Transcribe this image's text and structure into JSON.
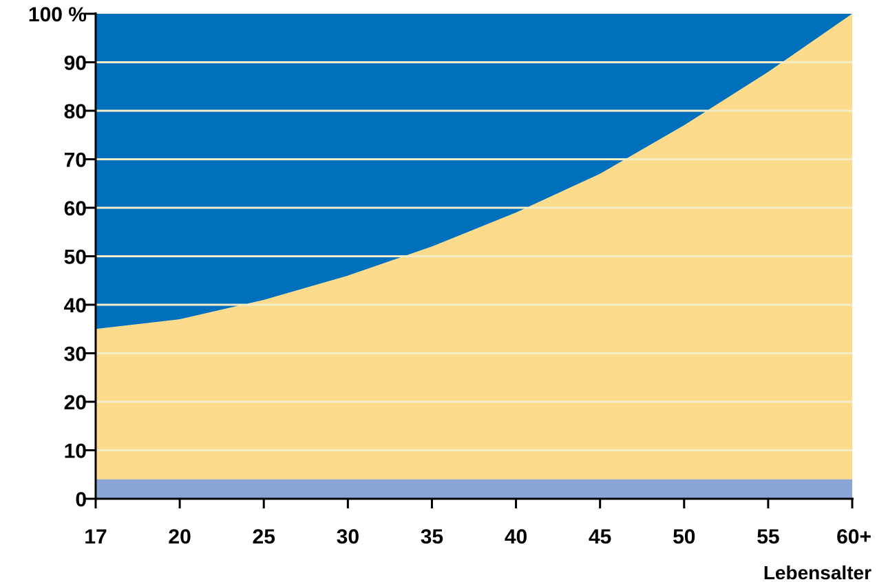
{
  "chart_data": {
    "type": "area",
    "x": [
      "17",
      "20",
      "25",
      "30",
      "35",
      "40",
      "45",
      "50",
      "55",
      "60+"
    ],
    "series": [
      {
        "values": [
          4,
          4,
          4,
          4,
          4,
          4,
          4,
          4,
          4,
          4
        ],
        "color": "#8aa6d6"
      },
      {
        "values": [
          35,
          37,
          41,
          46,
          52,
          59,
          67,
          77,
          88,
          100
        ],
        "color": "#fcdb8c"
      },
      {
        "values": [
          100,
          100,
          100,
          100,
          100,
          100,
          100,
          100,
          100,
          100
        ],
        "color": "#0070bd"
      }
    ],
    "y_tick_labels": [
      "0",
      "10",
      "20",
      "30",
      "40",
      "50",
      "60",
      "70",
      "80",
      "90",
      "100 %"
    ],
    "y_ticks": [
      0,
      10,
      20,
      30,
      40,
      50,
      60,
      70,
      80,
      90,
      100
    ],
    "xlabel": "Lebensalter",
    "ylabel": "",
    "ylim": [
      0,
      100
    ],
    "grid": true,
    "grid_color": "#f3edc8",
    "axis_color": "#000000"
  }
}
